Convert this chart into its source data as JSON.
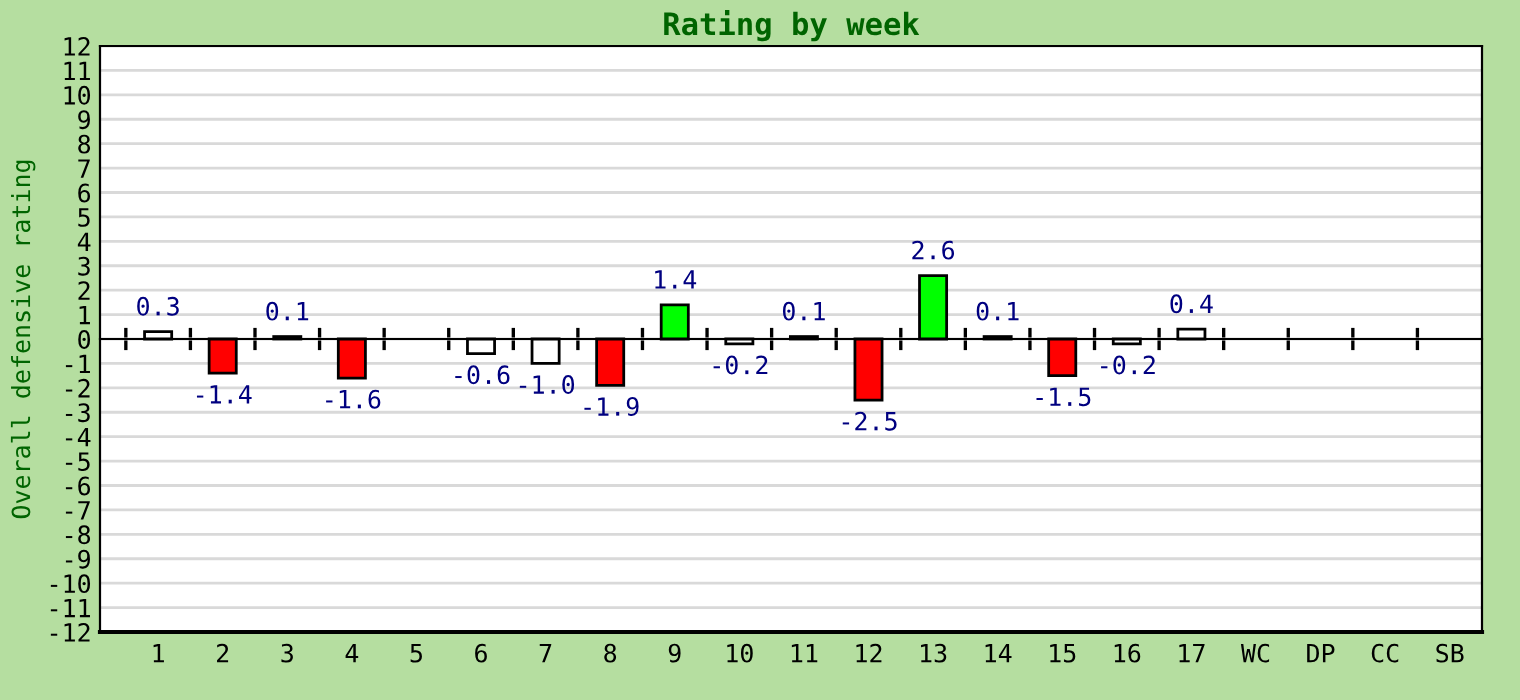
{
  "chart_data": {
    "type": "bar",
    "title": "Rating by week",
    "ylabel": "Overall defensive rating",
    "categories": [
      "1",
      "2",
      "3",
      "4",
      "5",
      "6",
      "7",
      "8",
      "9",
      "10",
      "11",
      "12",
      "13",
      "14",
      "15",
      "16",
      "17",
      "WC",
      "DP",
      "CC",
      "SB"
    ],
    "values": [
      0.3,
      -1.4,
      0.1,
      -1.6,
      null,
      -0.6,
      -1.0,
      -1.9,
      1.4,
      -0.2,
      0.1,
      -2.5,
      2.6,
      0.1,
      -1.5,
      -0.2,
      0.4,
      null,
      null,
      null,
      null
    ],
    "value_labels": [
      "0.3",
      "-1.4",
      "0.1",
      "-1.6",
      null,
      "-0.6",
      "-1.0",
      "-1.9",
      "1.4",
      "-0.2",
      "0.1",
      "-2.5",
      "2.6",
      "0.1",
      "-1.5",
      "-0.2",
      "0.4",
      null,
      null,
      null,
      null
    ],
    "colors": [
      "#ffffff",
      "#ff0000",
      "#ffffff",
      "#ff0000",
      "#ffffff",
      "#ffffff",
      "#ffffff",
      "#ff0000",
      "#00ff00",
      "#ffffff",
      "#ffffff",
      "#ff0000",
      "#00ff00",
      "#ffffff",
      "#ff0000",
      "#ffffff",
      "#ffffff",
      "#ffffff",
      "#ffffff",
      "#ffffff",
      "#ffffff"
    ],
    "ylim": [
      -12,
      12
    ],
    "yticks": [
      -12,
      -11,
      -10,
      -9,
      -8,
      -7,
      -6,
      -5,
      -4,
      -3,
      -2,
      -1,
      0,
      1,
      2,
      3,
      4,
      5,
      6,
      7,
      8,
      9,
      10,
      11,
      12
    ],
    "grid": "y"
  }
}
